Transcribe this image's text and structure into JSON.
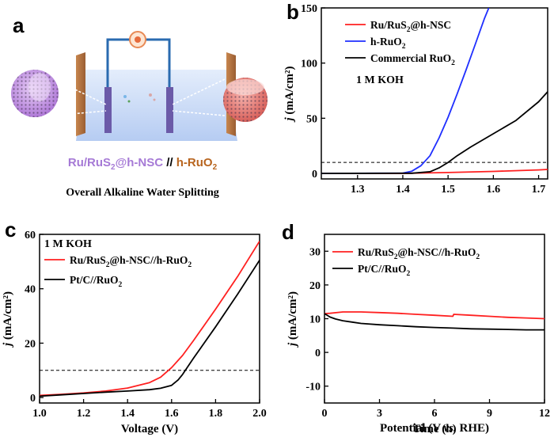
{
  "panel_letters": {
    "a": "a",
    "b": "b",
    "c": "c",
    "d": "d"
  },
  "schematic": {
    "cell_label_ru": "Ru/RuS",
    "cell_label_ru_sub": "2",
    "cell_label_ru_tail": "@h-NSC",
    "separator": " // ",
    "cell_label_h": "h-RuO",
    "cell_label_h_sub": "2",
    "caption": "Overall Alkaline Water Splitting",
    "colors": {
      "purple": "#a67ad6",
      "brown": "#b8651f"
    }
  },
  "chart_data": [
    {
      "id": "b",
      "type": "line",
      "xlabel_main": "Potential (V ",
      "xlabel_italic": "vs.",
      "xlabel_tail": " RHE)",
      "ylabel_j": "j",
      "ylabel_rest": " (mA/cm²)",
      "xlim": [
        1.22,
        1.72
      ],
      "ylim": [
        -5,
        150
      ],
      "xticks": [
        1.3,
        1.4,
        1.5,
        1.6,
        1.7
      ],
      "yticks": [
        0,
        50,
        100,
        150
      ],
      "xtick_labels": [
        "1.3",
        "1.4",
        "1.5",
        "1.6",
        "1.7"
      ],
      "ytick_labels": [
        "0",
        "50",
        "100",
        "150"
      ],
      "annotation": "1 M KOH",
      "hline": 10,
      "legend": [
        {
          "name": "Ru/RuS",
          "sub": "2",
          "tail": "@h-NSC",
          "color": "#ff2020"
        },
        {
          "name": "h-RuO",
          "sub": "2",
          "tail": "",
          "color": "#1f2fff"
        },
        {
          "name": "Commercial RuO",
          "sub": "2",
          "tail": "",
          "color": "#000000"
        }
      ],
      "series": [
        {
          "name": "Ru/RuS2@h-NSC",
          "color": "#ff2020",
          "x": [
            1.22,
            1.4,
            1.5,
            1.6,
            1.7,
            1.72
          ],
          "y": [
            0,
            0,
            0.8,
            1.8,
            3.2,
            3.6
          ]
        },
        {
          "name": "h-RuO2",
          "color": "#1f2fff",
          "x": [
            1.22,
            1.4,
            1.42,
            1.44,
            1.46,
            1.48,
            1.5,
            1.52,
            1.54,
            1.56,
            1.58,
            1.59
          ],
          "y": [
            0,
            0.3,
            2,
            7,
            16,
            32,
            51,
            72,
            94,
            117,
            140,
            150
          ]
        },
        {
          "name": "Commercial RuO2",
          "color": "#000000",
          "x": [
            1.22,
            1.42,
            1.46,
            1.48,
            1.5,
            1.52,
            1.55,
            1.6,
            1.65,
            1.7,
            1.72
          ],
          "y": [
            0,
            0.2,
            1.5,
            5,
            10,
            16,
            24,
            36,
            48,
            65,
            74
          ]
        }
      ]
    },
    {
      "id": "c",
      "type": "line",
      "xlabel": "Voltage (V)",
      "ylabel_j": "j",
      "ylabel_rest": " (mA/cm²)",
      "xlim": [
        1.0,
        2.0
      ],
      "ylim": [
        -2,
        60
      ],
      "xticks": [
        1.0,
        1.2,
        1.4,
        1.6,
        1.8,
        2.0
      ],
      "yticks": [
        0,
        20,
        40,
        60
      ],
      "xtick_labels": [
        "1.0",
        "1.2",
        "1.4",
        "1.6",
        "1.8",
        "2.0"
      ],
      "ytick_labels": [
        "0",
        "20",
        "40",
        "60"
      ],
      "annotation": "1 M KOH",
      "hline": 10,
      "legend": [
        {
          "name": "Ru/RuS",
          "sub": "2",
          "tail": "@h-NSC//h-RuO",
          "sub2": "2",
          "color": "#ff2020"
        },
        {
          "name": "Pt/C//RuO",
          "sub": "2",
          "tail": "",
          "color": "#000000"
        }
      ],
      "series": [
        {
          "name": "Ru/RuS2@h-NSC//h-RuO2",
          "color": "#ff2020",
          "x": [
            1.0,
            1.1,
            1.2,
            1.3,
            1.4,
            1.5,
            1.55,
            1.6,
            1.65,
            1.7,
            1.8,
            1.9,
            2.0
          ],
          "y": [
            0.8,
            1.2,
            1.7,
            2.4,
            3.5,
            5.5,
            7.5,
            11,
            15.5,
            21,
            32.5,
            44.5,
            57.5
          ]
        },
        {
          "name": "Pt/C//RuO2",
          "color": "#000000",
          "x": [
            1.0,
            1.1,
            1.2,
            1.3,
            1.4,
            1.5,
            1.55,
            1.6,
            1.63,
            1.65,
            1.7,
            1.8,
            1.9,
            2.0
          ],
          "y": [
            0.5,
            1.0,
            1.5,
            2.0,
            2.4,
            2.9,
            3.4,
            4.5,
            6.5,
            8.5,
            14.5,
            26,
            38,
            50.5
          ]
        }
      ]
    },
    {
      "id": "d",
      "type": "line",
      "xlabel": "Time (h)",
      "ylabel_j": "j",
      "ylabel_rest": " (mA/cm²)",
      "xlim": [
        0,
        12
      ],
      "ylim": [
        -15,
        35
      ],
      "xticks": [
        0,
        3,
        6,
        9,
        12
      ],
      "yticks": [
        -10,
        0,
        10,
        20,
        30
      ],
      "xtick_labels": [
        "0",
        "3",
        "6",
        "9",
        "12"
      ],
      "ytick_labels": [
        "-10",
        "0",
        "10",
        "20",
        "30"
      ],
      "legend": [
        {
          "name": "Ru/RuS",
          "sub": "2",
          "tail": "@h-NSC//h-RuO",
          "sub2": "2",
          "color": "#ff2020"
        },
        {
          "name": "Pt/C//RuO",
          "sub": "2",
          "tail": "",
          "color": "#000000"
        }
      ],
      "series": [
        {
          "name": "Ru/RuS2@h-NSC//h-RuO2",
          "color": "#ff2020",
          "x": [
            0,
            0.3,
            1,
            2,
            3,
            4,
            5,
            6,
            7,
            7.05,
            8,
            9,
            10,
            11,
            12
          ],
          "y": [
            11.5,
            11.6,
            12.0,
            12.0,
            11.8,
            11.6,
            11.3,
            11.0,
            10.7,
            11.3,
            11.0,
            10.7,
            10.4,
            10.2,
            10.0
          ]
        },
        {
          "name": "Pt/C//RuO2",
          "color": "#000000",
          "x": [
            0,
            0.3,
            0.6,
            1,
            1.5,
            2,
            3,
            4,
            5,
            6,
            7,
            8,
            9,
            10,
            11,
            12
          ],
          "y": [
            11.5,
            10.5,
            9.9,
            9.4,
            9.0,
            8.6,
            8.2,
            7.9,
            7.6,
            7.4,
            7.2,
            7.0,
            6.9,
            6.8,
            6.7,
            6.7
          ]
        }
      ]
    }
  ]
}
